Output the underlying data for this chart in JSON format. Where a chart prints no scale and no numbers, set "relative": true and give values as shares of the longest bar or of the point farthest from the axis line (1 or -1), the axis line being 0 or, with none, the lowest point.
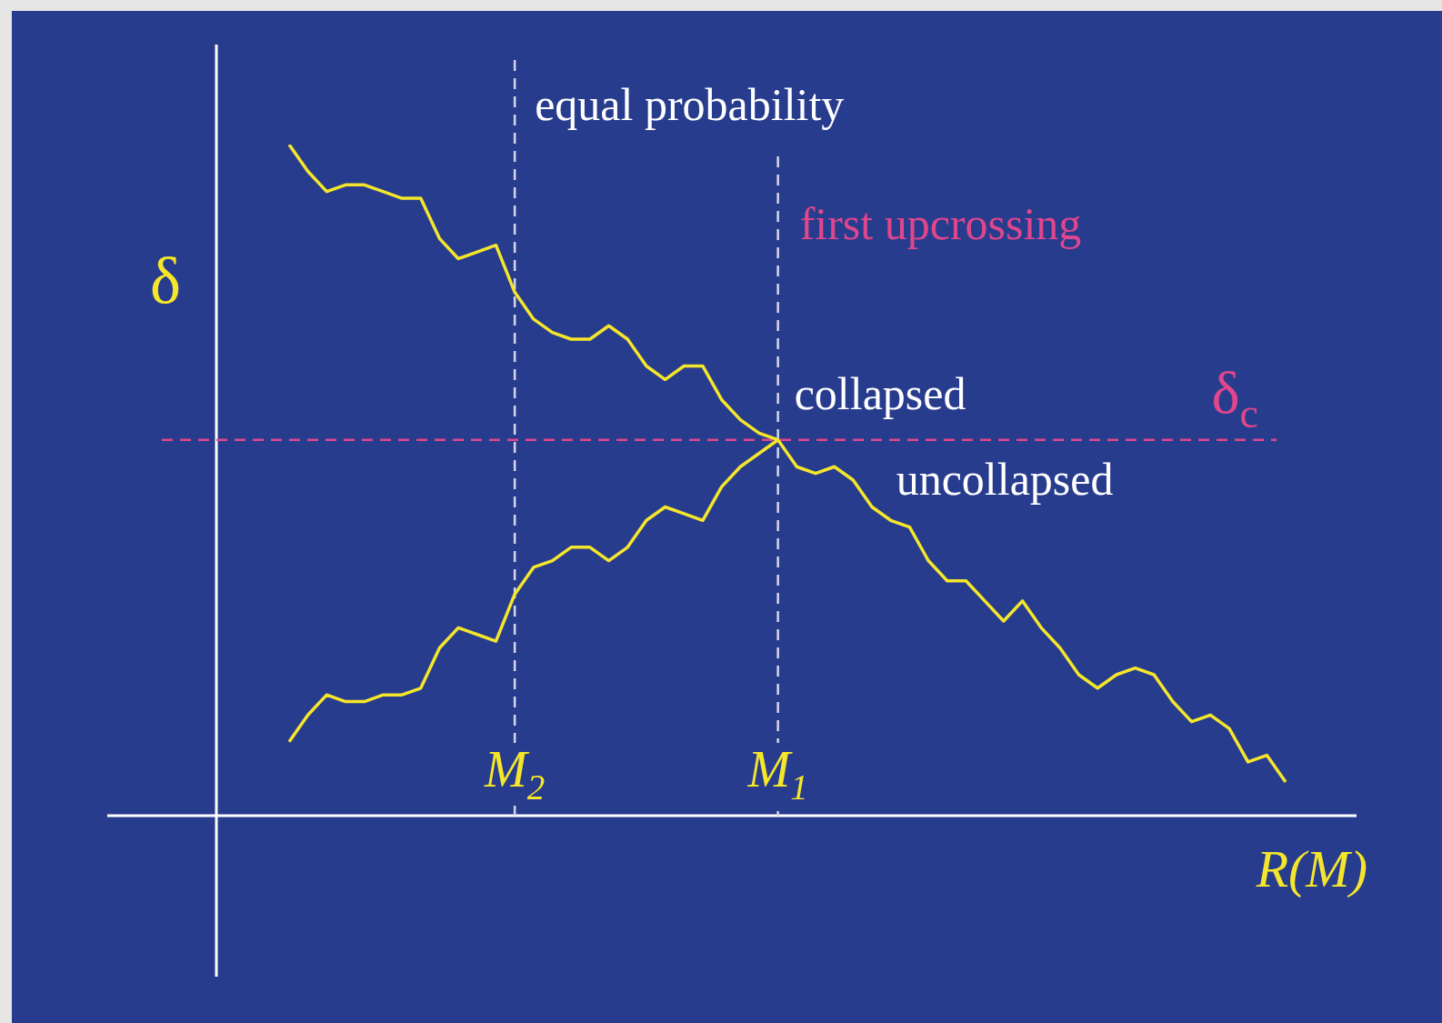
{
  "chart_data": {
    "type": "line",
    "relative": true,
    "xlabel": "R(M)",
    "ylabel": "δ",
    "legend": false,
    "marker": "none",
    "categories": [
      null,
      null,
      null,
      null,
      null,
      null,
      null,
      null,
      null,
      null,
      null,
      null,
      "M$_{2}$",
      null,
      null,
      null,
      null,
      null,
      null,
      null,
      null,
      null,
      null,
      null,
      null,
      null,
      "M$_{1}$",
      null,
      null,
      null,
      null,
      null,
      null,
      null,
      null,
      null,
      null,
      null,
      null,
      null,
      null,
      null,
      null,
      null,
      null,
      null,
      null,
      null,
      null,
      null,
      null,
      null,
      null,
      null
    ],
    "series": [
      {
        "color": "#f5e62b",
        "values": [
          1.0,
          0.96,
          0.93,
          0.94,
          0.94,
          0.93,
          0.92,
          0.92,
          0.86,
          0.83,
          0.84,
          0.85,
          0.78,
          0.74,
          0.72,
          0.71,
          0.71,
          0.73,
          0.71,
          0.67,
          0.65,
          0.67,
          0.67,
          0.62,
          0.59,
          0.57,
          0.56,
          0.52,
          0.51,
          0.52,
          0.5,
          0.46,
          0.44,
          0.43,
          0.38,
          0.35,
          0.35,
          0.32,
          0.29,
          0.32,
          0.28,
          0.25,
          0.21,
          0.19,
          0.21,
          0.22,
          0.21,
          0.17,
          0.14,
          0.15,
          0.13,
          0.08,
          0.09,
          0.05
        ]
      },
      {
        "color": "#f5e62b",
        "values": [
          0.11,
          0.15,
          0.18,
          0.17,
          0.17,
          0.18,
          0.18,
          0.19,
          0.25,
          0.28,
          0.27,
          0.26,
          0.33,
          0.37,
          0.38,
          0.4,
          0.4,
          0.38,
          0.4,
          0.44,
          0.46,
          0.45,
          0.44,
          0.49,
          0.52,
          0.54,
          0.56,
          null,
          null,
          null,
          null,
          null,
          null,
          null,
          null,
          null,
          null,
          null,
          null,
          null,
          null,
          null,
          null,
          null,
          null,
          null,
          null,
          null,
          null,
          null,
          null,
          null,
          null,
          null
        ]
      }
    ],
    "ref_lines": [
      {
        "axis": "x",
        "value": "M$_{2}$",
        "label": "equal probability",
        "color": "#d4d6ea",
        "line_style": "dashed"
      },
      {
        "axis": "x",
        "value": "M$_{1}$",
        "color": "#d4d6ea",
        "line_style": "dashed"
      },
      {
        "axis": "y",
        "value": 0.56,
        "label": "δ$_{c}$",
        "color": "#e0468c",
        "line_style": "dashed"
      }
    ],
    "annotations": [
      "first upcrossing",
      "collapsed",
      "uncollapsed"
    ]
  }
}
